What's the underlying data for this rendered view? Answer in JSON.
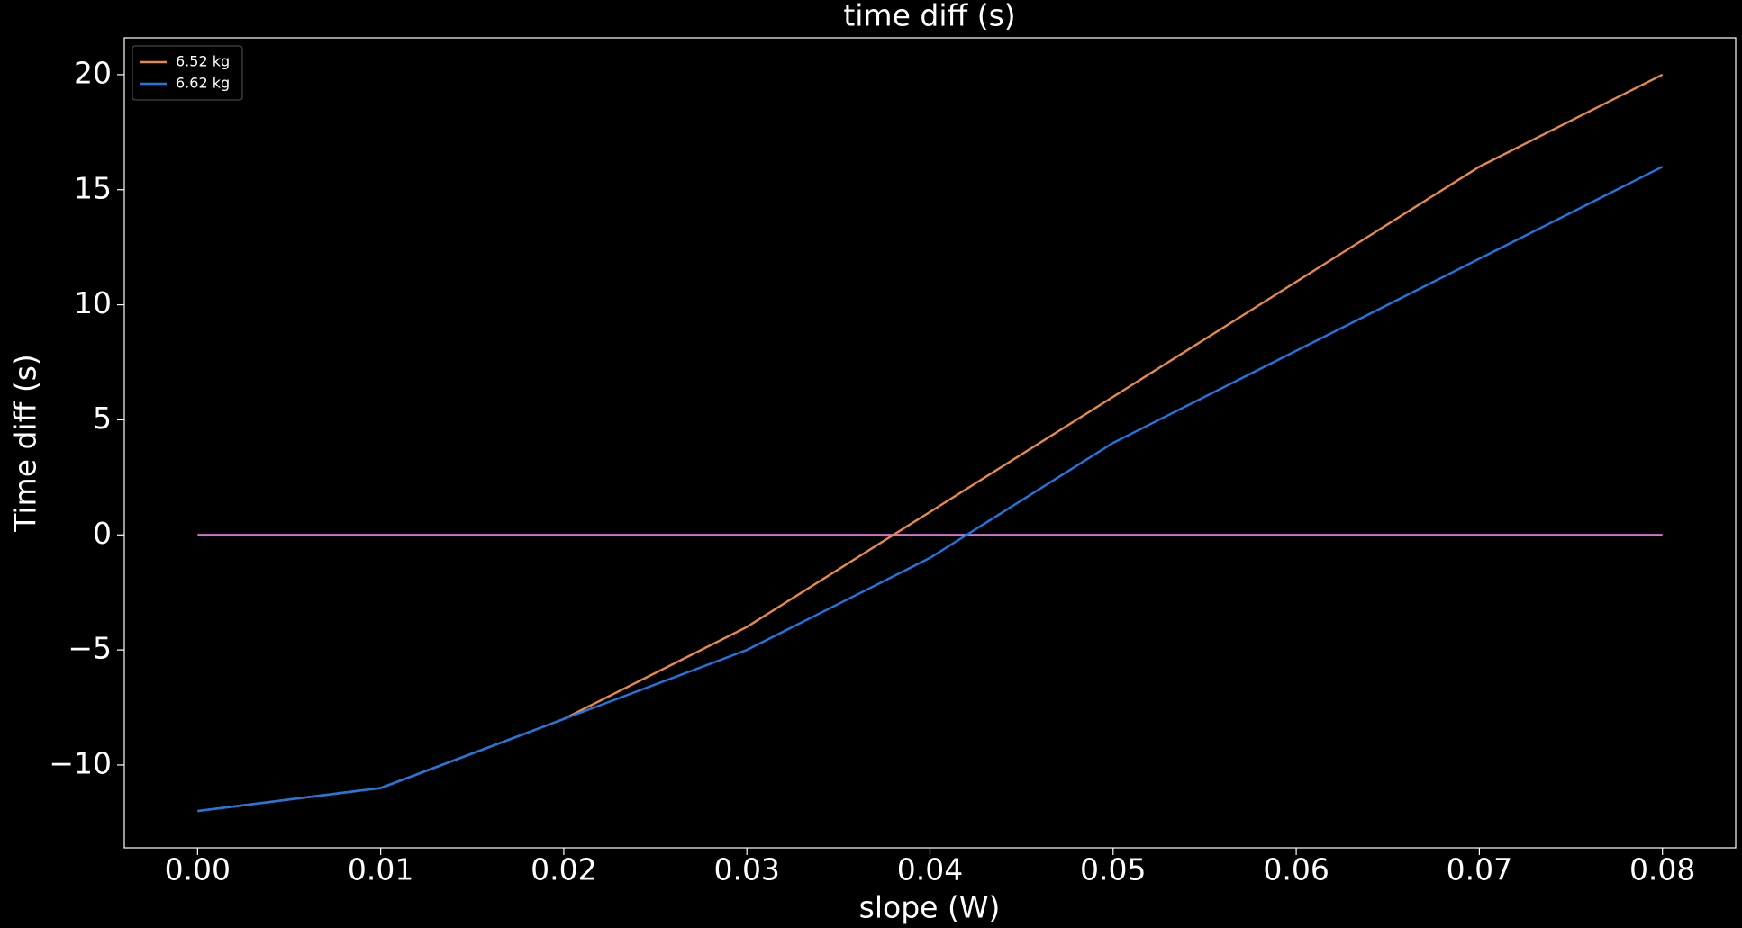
{
  "chart_data": {
    "type": "line",
    "title": "time diff (s)",
    "x_label": "slope (W)",
    "y_label": "Time diff (s)",
    "x": [
      0,
      0.01,
      0.02,
      0.03,
      0.04,
      0.05,
      0.06,
      0.07,
      0.08
    ],
    "series": [
      {
        "name": "6.52 kg",
        "color": "#e8894a",
        "values": [
          -12,
          -11,
          -8,
          -4,
          1,
          6,
          11,
          16,
          20
        ]
      },
      {
        "name": "6.62 kg",
        "color": "#1f77e4",
        "values": [
          -12,
          -11,
          -8,
          -5,
          -1,
          4,
          8,
          12,
          16
        ]
      },
      {
        "color": "#da70d6",
        "values": [
          0,
          0,
          0,
          0,
          0,
          0,
          0,
          0,
          0
        ]
      }
    ],
    "xlim": [
      -0.004,
      0.084
    ],
    "xticks": [
      {
        "value": 0,
        "label": "0.00"
      },
      0.01,
      0.02,
      0.03,
      0.04,
      0.05,
      0.06,
      0.07,
      0.08
    ],
    "ylim": [
      -13.6,
      21.6
    ],
    "yticks": [
      {
        "value": -10,
        "label": "−10"
      },
      {
        "value": -5,
        "label": "−5"
      },
      0,
      5,
      10,
      15,
      20
    ],
    "grid": false,
    "legend": "upper left",
    "background": "#000000"
  }
}
